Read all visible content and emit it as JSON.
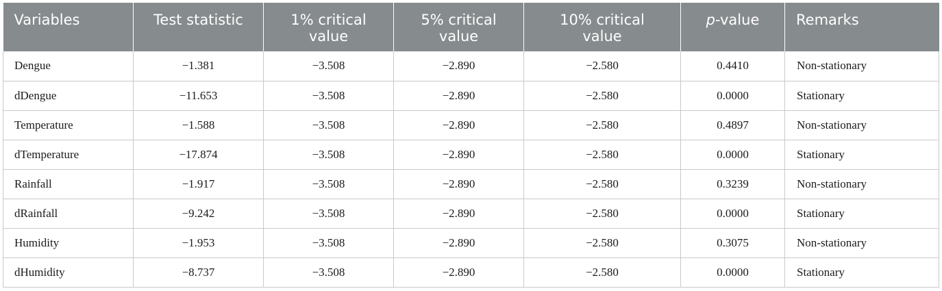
{
  "table": {
    "headers": {
      "variables": "Variables",
      "test_statistic": "Test statistic",
      "cv1_line1": "1% critical",
      "cv1_line2": "value",
      "cv5_line1": "5% critical",
      "cv5_line2": "value",
      "cv10_line1": "10% critical",
      "cv10_line2": "value",
      "pvalue_p": "p",
      "pvalue_rest": "-value",
      "remarks": "Remarks"
    },
    "rows": [
      {
        "variable": "Dengue",
        "test_statistic": "−1.381",
        "cv1": "−3.508",
        "cv5": "−2.890",
        "cv10": "−2.580",
        "p_value": "0.4410",
        "remarks": "Non-stationary"
      },
      {
        "variable": "dDengue",
        "test_statistic": "−11.653",
        "cv1": "−3.508",
        "cv5": "−2.890",
        "cv10": "−2.580",
        "p_value": "0.0000",
        "remarks": "Stationary"
      },
      {
        "variable": "Temperature",
        "test_statistic": "−1.588",
        "cv1": "−3.508",
        "cv5": "−2.890",
        "cv10": "−2.580",
        "p_value": "0.4897",
        "remarks": "Non-stationary"
      },
      {
        "variable": "dTemperature",
        "test_statistic": "−17.874",
        "cv1": "−3.508",
        "cv5": "−2.890",
        "cv10": "−2.580",
        "p_value": "0.0000",
        "remarks": "Stationary"
      },
      {
        "variable": "Rainfall",
        "test_statistic": "−1.917",
        "cv1": "−3.508",
        "cv5": "−2.890",
        "cv10": "−2.580",
        "p_value": "0.3239",
        "remarks": "Non-stationary"
      },
      {
        "variable": "dRainfall",
        "test_statistic": "−9.242",
        "cv1": "−3.508",
        "cv5": "−2.890",
        "cv10": "−2.580",
        "p_value": "0.0000",
        "remarks": "Stationary"
      },
      {
        "variable": "Humidity",
        "test_statistic": "−1.953",
        "cv1": "−3.508",
        "cv5": "−2.890",
        "cv10": "−2.580",
        "p_value": "0.3075",
        "remarks": "Non-stationary"
      },
      {
        "variable": "dHumidity",
        "test_statistic": "−8.737",
        "cv1": "−3.508",
        "cv5": "−2.890",
        "cv10": "−2.580",
        "p_value": "0.0000",
        "remarks": "Stationary"
      }
    ]
  },
  "colors": {
    "header_bg": "#868b8e",
    "header_text": "#ffffff",
    "grid_line": "#c9c9c9",
    "body_text": "#1a1a1a"
  }
}
